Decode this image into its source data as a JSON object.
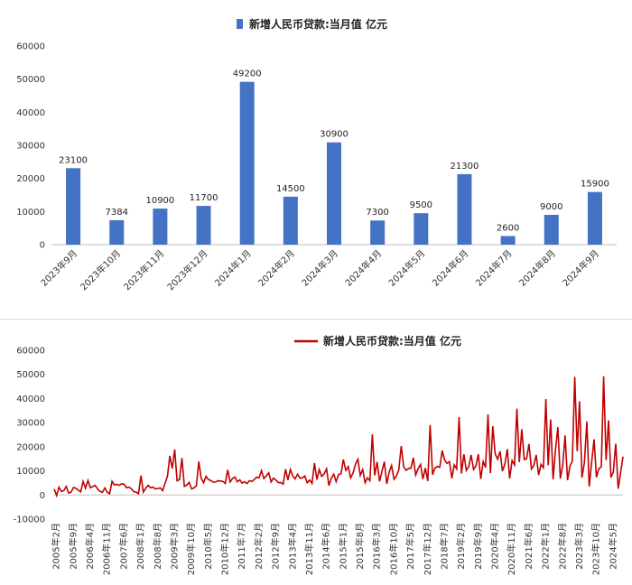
{
  "chart_data": [
    {
      "type": "bar",
      "title": "新增人民币贷款:当月值 亿元",
      "legend": {
        "label": "新增人民币贷款:当月值 亿元",
        "position": "top",
        "color": "#4472C4"
      },
      "categories": [
        "2023年9月",
        "2023年10月",
        "2023年11月",
        "2023年12月",
        "2024年1月",
        "2024年2月",
        "2024年3月",
        "2024年4月",
        "2024年5月",
        "2024年6月",
        "2024年7月",
        "2024年8月",
        "2024年9月"
      ],
      "values": [
        23100,
        7384,
        10900,
        11700,
        49200,
        14500,
        30900,
        7300,
        9500,
        21300,
        2600,
        9000,
        15900
      ],
      "data_labels": [
        "23100",
        "7384",
        "10900",
        "11700",
        "49200",
        "14500",
        "30900",
        "7300",
        "9500",
        "21300",
        "2600",
        "9000",
        "15900"
      ],
      "yticks": [
        "0",
        "10000",
        "20000",
        "30000",
        "40000",
        "50000",
        "60000"
      ],
      "ylim": [
        0,
        60000
      ],
      "grid": false,
      "color": "#4472C4"
    },
    {
      "type": "line",
      "title": "新增人民币贷款:当月值 亿元",
      "legend": {
        "label": "新增人民币贷款:当月值 亿元",
        "position": "top",
        "color": "#C00000"
      },
      "x_start": "2005年1月",
      "x_tick_labels": [
        "2005年2月",
        "2005年9月",
        "2006年4月",
        "2006年11月",
        "2007年6月",
        "2008年1月",
        "2008年8月",
        "2009年3月",
        "2009年10月",
        "2010年5月",
        "2010年12月",
        "2011年7月",
        "2012年2月",
        "2012年9月",
        "2013年4月",
        "2013年11月",
        "2014年6月",
        "2015年1月",
        "2015年8月",
        "2016年3月",
        "2016年10月",
        "2017年5月",
        "2017年12月",
        "2018年7月",
        "2019年2月",
        "2019年9月",
        "2020年4月",
        "2020年11月",
        "2021年6月",
        "2022年1月",
        "2022年8月",
        "2023年3月",
        "2023年10月",
        "2024年5月"
      ],
      "values": [
        2500,
        -200,
        3200,
        1500,
        1800,
        3500,
        800,
        1200,
        3100,
        2800,
        2000,
        1300,
        5600,
        2800,
        6000,
        3000,
        3500,
        4000,
        2500,
        1500,
        1100,
        2900,
        1200,
        500,
        5700,
        4200,
        4400,
        4000,
        4600,
        4500,
        3000,
        3300,
        2600,
        1400,
        1200,
        500,
        8000,
        1200,
        2800,
        4000,
        3000,
        3300,
        2500,
        2700,
        2900,
        1800,
        4800,
        7800,
        16200,
        11000,
        18900,
        5900,
        6400,
        15300,
        3600,
        4100,
        5200,
        2500,
        2900,
        3800,
        13900,
        7000,
        5100,
        7700,
        6400,
        6000,
        5300,
        5400,
        5900,
        5800,
        5600,
        4800,
        10400,
        5400,
        6800,
        7400,
        5500,
        6300,
        4900,
        5500,
        4700,
        5900,
        5600,
        6400,
        7400,
        7100,
        10100,
        6800,
        7900,
        9200,
        5400,
        7000,
        6200,
        5100,
        5200,
        4500,
        10700,
        6200,
        10600,
        7900,
        6700,
        8600,
        7000,
        7100,
        7900,
        5100,
        6200,
        4800,
        13200,
        6400,
        10500,
        7700,
        8700,
        10800,
        3900,
        7000,
        8600,
        5500,
        8500,
        8800,
        14700,
        10200,
        11800,
        7100,
        9000,
        12800,
        14800,
        8100,
        10500,
        5100,
        7100,
        5900,
        25100,
        8100,
        13700,
        5600,
        9900,
        13800,
        4600,
        9500,
        12200,
        6500,
        7900,
        10400,
        20300,
        11700,
        10200,
        11000,
        11100,
        15400,
        8300,
        10900,
        12700,
        6600,
        11200,
        5800,
        29000,
        8400,
        11200,
        11800,
        11500,
        18400,
        14500,
        13100,
        13800,
        6970,
        12500,
        10800,
        32300,
        8900,
        16900,
        10200,
        11800,
        16600,
        10600,
        12100,
        16900,
        6613,
        13900,
        11400,
        33400,
        9057,
        28500,
        17000,
        14800,
        18100,
        9927,
        12800,
        19000,
        6898,
        14300,
        12500,
        35800,
        13600,
        27300,
        14700,
        15000,
        21200,
        10800,
        12200,
        16600,
        8262,
        12700,
        11300,
        39800,
        12300,
        31300,
        6454,
        18900,
        28100,
        6790,
        12500,
        24700,
        6152,
        12100,
        14000,
        49000,
        18100,
        38900,
        7188,
        13600,
        30500,
        3459,
        13600,
        23100,
        7384,
        10900,
        11700,
        49200,
        14500,
        30900,
        7300,
        9500,
        21300,
        2600,
        9000,
        15900
      ],
      "yticks": [
        "-10000",
        "0",
        "10000",
        "20000",
        "30000",
        "40000",
        "50000",
        "60000"
      ],
      "ylim": [
        -10000,
        60000
      ],
      "grid": false,
      "color": "#C00000"
    }
  ]
}
